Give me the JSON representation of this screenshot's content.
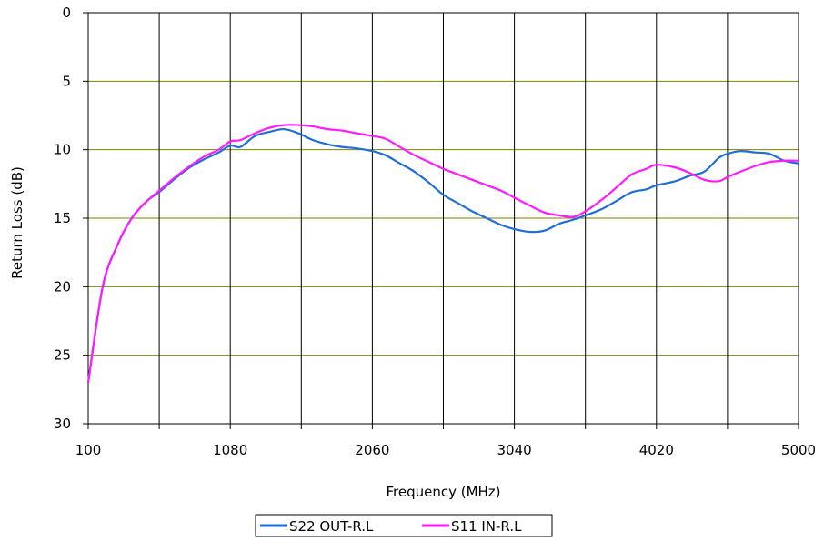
{
  "chart_data": {
    "type": "line",
    "xlabel": "Frequency (MHz)",
    "ylabel": "Return Loss (dB)",
    "xlim": [
      100,
      5000
    ],
    "ylim": [
      0,
      30
    ],
    "y_inverted": true,
    "x_ticks": [
      100,
      1080,
      2060,
      3040,
      4020,
      5000
    ],
    "x_tick_labels": [
      "100",
      "1080",
      "2060",
      "3040",
      "4020",
      "5000"
    ],
    "x_gridlines": [
      100,
      590,
      1080,
      1570,
      2060,
      2550,
      3040,
      3530,
      4020,
      4510,
      5000
    ],
    "y_ticks": [
      0,
      5,
      10,
      15,
      20,
      25,
      30
    ],
    "y_tick_labels": [
      "0",
      "5",
      "10",
      "15",
      "20",
      "25",
      "30"
    ],
    "grid": true,
    "legend_position": "bottom-center",
    "series": [
      {
        "name": "S22 OUT-R.L",
        "color": "#1f6fd6",
        "x": [
          100,
          200,
          300,
          400,
          500,
          600,
          700,
          800,
          900,
          1000,
          1080,
          1150,
          1250,
          1350,
          1450,
          1550,
          1650,
          1750,
          1850,
          1950,
          2060,
          2150,
          2250,
          2350,
          2450,
          2550,
          2650,
          2750,
          2850,
          2950,
          3040,
          3150,
          3250,
          3350,
          3450,
          3530,
          3650,
          3750,
          3850,
          3950,
          4020,
          4150,
          4250,
          4350,
          4450,
          4510,
          4600,
          4700,
          4800,
          4900,
          5000
        ],
        "y": [
          27.0,
          20.0,
          17.0,
          15.0,
          13.8,
          13.0,
          12.1,
          11.3,
          10.7,
          10.2,
          9.7,
          9.8,
          9.0,
          8.7,
          8.5,
          8.8,
          9.3,
          9.6,
          9.8,
          9.9,
          10.1,
          10.4,
          11.0,
          11.6,
          12.4,
          13.3,
          13.9,
          14.5,
          15.0,
          15.5,
          15.8,
          16.0,
          15.9,
          15.4,
          15.1,
          14.8,
          14.3,
          13.7,
          13.1,
          12.9,
          12.6,
          12.3,
          11.9,
          11.6,
          10.6,
          10.3,
          10.1,
          10.2,
          10.3,
          10.8,
          11.0
        ]
      },
      {
        "name": "S11 IN-R.L",
        "color": "#ff1aff",
        "x": [
          100,
          200,
          300,
          400,
          500,
          600,
          700,
          800,
          900,
          1000,
          1080,
          1150,
          1250,
          1350,
          1450,
          1550,
          1650,
          1750,
          1850,
          1950,
          2060,
          2150,
          2250,
          2350,
          2450,
          2550,
          2650,
          2750,
          2850,
          2950,
          3040,
          3150,
          3250,
          3350,
          3450,
          3530,
          3650,
          3750,
          3850,
          3950,
          4020,
          4150,
          4250,
          4350,
          4450,
          4510,
          4600,
          4700,
          4800,
          4900,
          5000
        ],
        "y": [
          27.0,
          20.0,
          17.0,
          15.0,
          13.8,
          12.9,
          12.0,
          11.2,
          10.5,
          10.0,
          9.4,
          9.3,
          8.8,
          8.4,
          8.2,
          8.2,
          8.3,
          8.5,
          8.6,
          8.8,
          9.0,
          9.2,
          9.8,
          10.4,
          10.9,
          11.4,
          11.8,
          12.2,
          12.6,
          13.0,
          13.5,
          14.1,
          14.6,
          14.8,
          14.9,
          14.5,
          13.6,
          12.7,
          11.8,
          11.4,
          11.1,
          11.3,
          11.7,
          12.2,
          12.3,
          12.0,
          11.6,
          11.2,
          10.9,
          10.8,
          10.8
        ]
      }
    ]
  }
}
